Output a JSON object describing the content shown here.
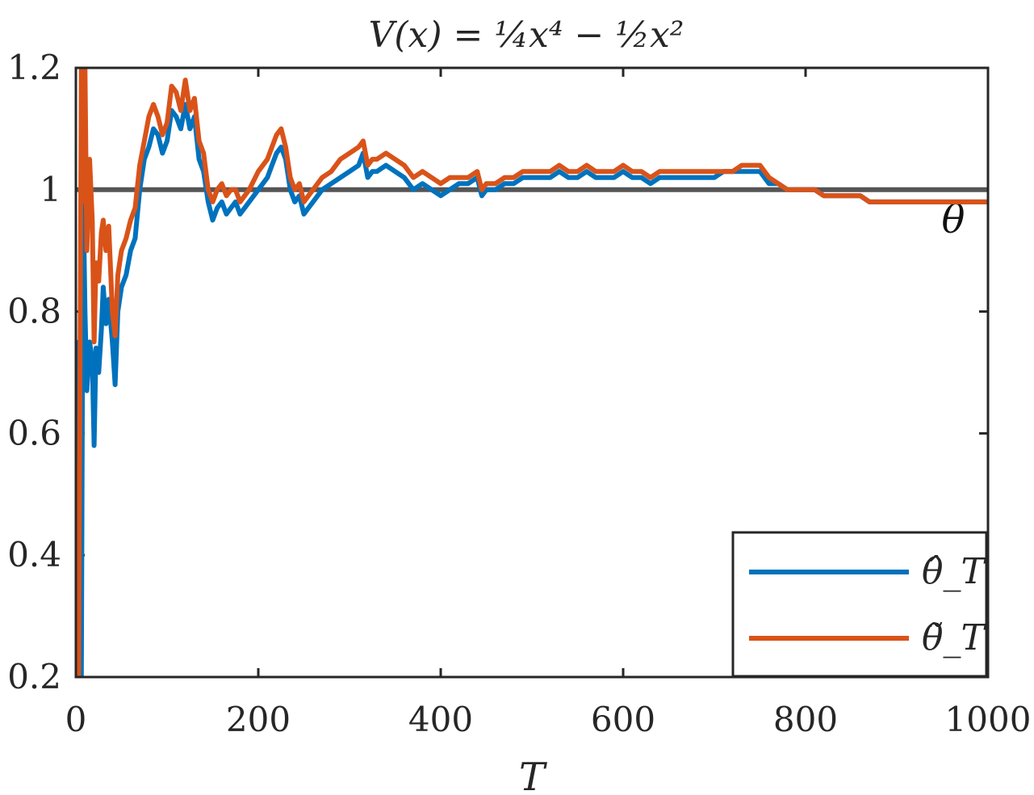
{
  "chart_data": {
    "type": "line",
    "title": "V(x) = ¼x⁴ − ½x²",
    "xlabel": "T",
    "ylabel": "",
    "xlim": [
      0,
      1000
    ],
    "ylim": [
      0.2,
      1.2
    ],
    "xticks": [
      0,
      200,
      400,
      600,
      800,
      1000
    ],
    "xtick_labels": [
      "0",
      "200",
      "400",
      "600",
      "800",
      "1000"
    ],
    "yticks": [
      0.2,
      0.4,
      0.6,
      0.8,
      1.0,
      1.2
    ],
    "ytick_labels": [
      "0.2",
      "0.4",
      "0.6",
      "0.8",
      "1",
      "1.2"
    ],
    "grid": false,
    "legend_position": "bottom-right",
    "reference_line": {
      "y": 1.0,
      "label": "θ",
      "color": "#555555"
    },
    "series": [
      {
        "name": "θ̂_T",
        "color": "#0072BD",
        "x": [
          0,
          3,
          6,
          8,
          10,
          12,
          15,
          18,
          20,
          22,
          25,
          28,
          30,
          33,
          36,
          40,
          43,
          46,
          50,
          55,
          60,
          65,
          70,
          75,
          80,
          85,
          90,
          95,
          100,
          105,
          110,
          115,
          120,
          125,
          130,
          135,
          140,
          145,
          150,
          155,
          160,
          165,
          170,
          175,
          180,
          190,
          200,
          210,
          215,
          220,
          225,
          230,
          235,
          240,
          245,
          250,
          255,
          260,
          270,
          280,
          290,
          300,
          310,
          315,
          320,
          325,
          330,
          340,
          350,
          360,
          370,
          380,
          390,
          400,
          410,
          420,
          430,
          440,
          445,
          450,
          460,
          470,
          480,
          490,
          500,
          510,
          520,
          530,
          540,
          550,
          560,
          570,
          580,
          590,
          600,
          610,
          620,
          630,
          640,
          650,
          660,
          670,
          680,
          690,
          700,
          710,
          720,
          730,
          740,
          750,
          760,
          770,
          780,
          790,
          800,
          810,
          820,
          830,
          840,
          850,
          860,
          870,
          880,
          890,
          900,
          910,
          920,
          930,
          940,
          950,
          960,
          970,
          980,
          990,
          1000
        ],
        "values": [
          0.2,
          0.75,
          0.2,
          1.0,
          0.8,
          0.67,
          0.75,
          0.72,
          0.58,
          0.74,
          0.7,
          0.77,
          0.84,
          0.78,
          0.82,
          0.75,
          0.68,
          0.8,
          0.84,
          0.86,
          0.9,
          0.92,
          1.0,
          1.05,
          1.07,
          1.1,
          1.09,
          1.06,
          1.08,
          1.13,
          1.12,
          1.1,
          1.14,
          1.1,
          1.12,
          1.05,
          1.03,
          0.98,
          0.95,
          0.97,
          0.98,
          0.96,
          0.97,
          0.98,
          0.96,
          0.98,
          1.0,
          1.02,
          1.04,
          1.06,
          1.07,
          1.05,
          1.0,
          0.98,
          0.99,
          0.96,
          0.97,
          0.98,
          1.0,
          1.01,
          1.02,
          1.03,
          1.04,
          1.06,
          1.02,
          1.03,
          1.03,
          1.04,
          1.03,
          1.02,
          1.0,
          1.01,
          1.0,
          0.99,
          1.0,
          1.01,
          1.01,
          1.02,
          0.99,
          1.0,
          1.0,
          1.01,
          1.01,
          1.02,
          1.02,
          1.02,
          1.02,
          1.03,
          1.02,
          1.02,
          1.03,
          1.02,
          1.02,
          1.02,
          1.03,
          1.02,
          1.02,
          1.01,
          1.02,
          1.02,
          1.02,
          1.02,
          1.02,
          1.02,
          1.02,
          1.03,
          1.03,
          1.03,
          1.03,
          1.03,
          1.01,
          1.01,
          1.0,
          1.0,
          1.0,
          1.0,
          0.99,
          0.99,
          0.99,
          0.99,
          0.99,
          0.98,
          0.98,
          0.98,
          0.98,
          0.98,
          0.98,
          0.98,
          0.98,
          0.98,
          0.98,
          0.98,
          0.98,
          0.98,
          0.98
        ]
      },
      {
        "name": "θ̃_T",
        "color": "#D95319",
        "x": [
          0,
          3,
          6,
          8,
          10,
          12,
          15,
          18,
          20,
          22,
          25,
          28,
          30,
          33,
          36,
          40,
          43,
          46,
          50,
          55,
          60,
          65,
          70,
          75,
          80,
          85,
          90,
          95,
          100,
          105,
          110,
          115,
          120,
          125,
          130,
          135,
          140,
          145,
          150,
          155,
          160,
          165,
          170,
          175,
          180,
          190,
          200,
          210,
          215,
          220,
          225,
          230,
          235,
          240,
          245,
          250,
          255,
          260,
          270,
          280,
          290,
          300,
          310,
          315,
          320,
          325,
          330,
          340,
          350,
          360,
          370,
          380,
          390,
          400,
          410,
          420,
          430,
          440,
          445,
          450,
          460,
          470,
          480,
          490,
          500,
          510,
          520,
          530,
          540,
          550,
          560,
          570,
          580,
          590,
          600,
          610,
          620,
          630,
          640,
          650,
          660,
          670,
          680,
          690,
          700,
          710,
          720,
          730,
          740,
          750,
          760,
          770,
          780,
          790,
          800,
          810,
          820,
          830,
          840,
          850,
          860,
          870,
          880,
          890,
          900,
          910,
          920,
          930,
          940,
          950,
          960,
          970,
          980,
          990,
          1000
        ],
        "values": [
          0.55,
          0.2,
          1.2,
          0.98,
          1.2,
          0.9,
          1.05,
          0.95,
          0.75,
          0.88,
          0.85,
          0.93,
          0.95,
          0.9,
          0.94,
          0.8,
          0.76,
          0.86,
          0.9,
          0.92,
          0.95,
          0.97,
          1.04,
          1.08,
          1.12,
          1.14,
          1.12,
          1.09,
          1.11,
          1.17,
          1.16,
          1.13,
          1.18,
          1.13,
          1.15,
          1.08,
          1.06,
          1.0,
          0.98,
          1.0,
          1.01,
          0.99,
          1.0,
          1.0,
          0.98,
          1.0,
          1.03,
          1.05,
          1.07,
          1.09,
          1.1,
          1.07,
          1.02,
          1.0,
          1.01,
          0.98,
          0.99,
          1.0,
          1.02,
          1.03,
          1.05,
          1.06,
          1.07,
          1.08,
          1.04,
          1.05,
          1.05,
          1.06,
          1.05,
          1.04,
          1.02,
          1.03,
          1.02,
          1.01,
          1.02,
          1.02,
          1.02,
          1.03,
          1.0,
          1.01,
          1.01,
          1.02,
          1.02,
          1.03,
          1.03,
          1.03,
          1.03,
          1.04,
          1.03,
          1.03,
          1.04,
          1.03,
          1.03,
          1.03,
          1.04,
          1.03,
          1.03,
          1.02,
          1.03,
          1.03,
          1.03,
          1.03,
          1.03,
          1.03,
          1.03,
          1.03,
          1.03,
          1.04,
          1.04,
          1.04,
          1.02,
          1.01,
          1.0,
          1.0,
          1.0,
          1.0,
          0.99,
          0.99,
          0.99,
          0.99,
          0.99,
          0.98,
          0.98,
          0.98,
          0.98,
          0.98,
          0.98,
          0.98,
          0.98,
          0.98,
          0.98,
          0.98,
          0.98,
          0.98,
          0.98
        ]
      }
    ]
  }
}
